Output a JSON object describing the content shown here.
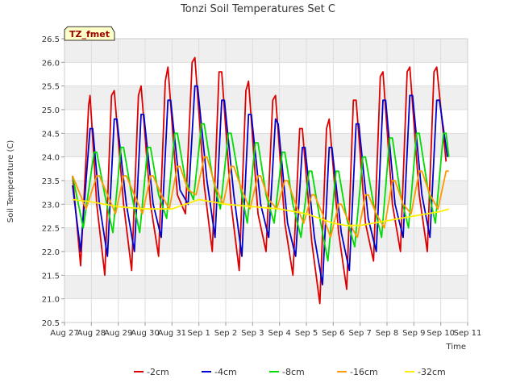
{
  "chart_data": {
    "type": "line",
    "title": "Tonzi Soil Temperatures Set C",
    "xlabel": "Time",
    "ylabel": "Soil Temperature (C)",
    "badge": "TZ_fmet",
    "ylim": [
      20.5,
      26.5
    ],
    "xlim": [
      0,
      15
    ],
    "grid": true,
    "legend": "bottom",
    "x_ticks": [
      "Aug 27",
      "Aug 28",
      "Aug 29",
      "Aug 30",
      "Aug 31",
      "Sep 1",
      "Sep 2",
      "Sep 3",
      "Sep 4",
      "Sep 5",
      "Sep 6",
      "Sep 7",
      "Sep 8",
      "Sep 9",
      "Sep 10",
      "Sep 11"
    ],
    "y_ticks": [
      20.5,
      21.0,
      21.5,
      22.0,
      22.5,
      23.0,
      23.5,
      24.0,
      24.5,
      25.0,
      25.5,
      26.0,
      26.5
    ],
    "x_unit": "days since Aug 27",
    "series": [
      {
        "name": "-2cm",
        "color": "#dd0000",
        "x": [
          0.3,
          0.6,
          0.9,
          0.95,
          1.2,
          1.5,
          1.75,
          1.85,
          2.2,
          2.5,
          2.75,
          2.85,
          3.2,
          3.5,
          3.75,
          3.85,
          4.2,
          4.5,
          4.75,
          4.85,
          5.2,
          5.5,
          5.75,
          5.85,
          6.2,
          6.5,
          6.75,
          6.85,
          7.2,
          7.5,
          7.75,
          7.85,
          8.2,
          8.5,
          8.75,
          8.85,
          9.2,
          9.5,
          9.75,
          9.85,
          10.2,
          10.5,
          10.75,
          10.85,
          11.2,
          11.5,
          11.75,
          11.85,
          12.2,
          12.5,
          12.75,
          12.85,
          13.2,
          13.5,
          13.75,
          13.85,
          14.2
        ],
        "y": [
          23.6,
          21.7,
          25.1,
          25.3,
          23.0,
          21.5,
          25.3,
          25.4,
          23.0,
          21.6,
          25.3,
          25.5,
          23.0,
          21.9,
          25.6,
          25.9,
          23.2,
          22.8,
          26.0,
          26.1,
          23.4,
          22.0,
          25.8,
          25.8,
          23.0,
          21.6,
          25.4,
          25.6,
          22.8,
          22.0,
          25.2,
          25.3,
          22.6,
          21.5,
          24.6,
          24.6,
          22.2,
          20.9,
          24.6,
          24.8,
          22.4,
          21.2,
          25.2,
          25.2,
          22.6,
          21.8,
          25.7,
          25.8,
          23.0,
          22.0,
          25.8,
          25.9,
          23.2,
          22.0,
          25.8,
          25.9,
          23.9
        ]
      },
      {
        "name": "-4cm",
        "color": "#0000cc",
        "x": [
          0.3,
          0.6,
          0.95,
          1.05,
          1.3,
          1.6,
          1.85,
          1.95,
          2.3,
          2.6,
          2.85,
          2.95,
          3.3,
          3.6,
          3.85,
          3.95,
          4.3,
          4.6,
          4.85,
          4.95,
          5.3,
          5.6,
          5.85,
          5.95,
          6.3,
          6.6,
          6.85,
          6.95,
          7.3,
          7.6,
          7.85,
          7.95,
          8.3,
          8.6,
          8.85,
          8.95,
          9.3,
          9.6,
          9.85,
          9.95,
          10.3,
          10.6,
          10.85,
          10.95,
          11.3,
          11.6,
          11.85,
          11.95,
          12.3,
          12.6,
          12.85,
          12.95,
          13.3,
          13.6,
          13.85,
          13.95,
          14.25
        ],
        "y": [
          23.4,
          22.0,
          24.6,
          24.6,
          23.0,
          21.9,
          24.8,
          24.8,
          23.0,
          22.0,
          24.9,
          24.9,
          23.0,
          22.3,
          25.2,
          25.2,
          23.3,
          23.0,
          25.5,
          25.5,
          23.5,
          22.3,
          25.2,
          25.2,
          23.2,
          21.9,
          24.9,
          24.9,
          23.0,
          22.3,
          24.8,
          24.7,
          22.6,
          21.9,
          24.2,
          24.2,
          22.3,
          21.3,
          24.2,
          24.2,
          22.4,
          21.6,
          24.7,
          24.7,
          22.7,
          22.0,
          25.2,
          25.2,
          23.0,
          22.3,
          25.3,
          25.3,
          23.2,
          22.3,
          25.2,
          25.2,
          24.0
        ]
      },
      {
        "name": "-8cm",
        "color": "#00dd00",
        "x": [
          0.3,
          0.7,
          1.1,
          1.2,
          1.5,
          1.8,
          2.1,
          2.2,
          2.5,
          2.8,
          3.1,
          3.2,
          3.5,
          3.8,
          4.1,
          4.2,
          4.5,
          4.8,
          5.1,
          5.2,
          5.5,
          5.8,
          6.1,
          6.2,
          6.5,
          6.8,
          7.1,
          7.2,
          7.5,
          7.8,
          8.1,
          8.2,
          8.5,
          8.8,
          9.1,
          9.2,
          9.5,
          9.8,
          10.1,
          10.2,
          10.5,
          10.8,
          11.1,
          11.2,
          11.5,
          11.8,
          12.1,
          12.2,
          12.5,
          12.8,
          13.1,
          13.2,
          13.5,
          13.8,
          14.1,
          14.2,
          14.3
        ],
        "y": [
          23.6,
          22.5,
          24.1,
          24.1,
          23.2,
          22.4,
          24.2,
          24.2,
          23.2,
          22.4,
          24.2,
          24.2,
          23.2,
          22.7,
          24.5,
          24.5,
          23.5,
          23.1,
          24.7,
          24.7,
          23.6,
          22.9,
          24.5,
          24.5,
          23.5,
          22.6,
          24.3,
          24.3,
          23.2,
          22.6,
          24.1,
          24.1,
          23.0,
          22.3,
          23.7,
          23.7,
          22.7,
          21.8,
          23.7,
          23.7,
          22.7,
          22.1,
          24.0,
          24.0,
          23.0,
          22.3,
          24.4,
          24.4,
          23.2,
          22.5,
          24.5,
          24.5,
          23.4,
          22.6,
          24.5,
          24.5,
          24.0
        ]
      },
      {
        "name": "-16cm",
        "color": "#ff9900",
        "x": [
          0.3,
          0.8,
          1.2,
          1.3,
          1.6,
          1.9,
          2.2,
          2.3,
          2.6,
          2.9,
          3.2,
          3.3,
          3.6,
          3.9,
          4.2,
          4.3,
          4.6,
          4.9,
          5.2,
          5.3,
          5.6,
          5.9,
          6.2,
          6.3,
          6.6,
          6.9,
          7.2,
          7.3,
          7.6,
          7.9,
          8.2,
          8.3,
          8.6,
          8.9,
          9.2,
          9.3,
          9.6,
          9.9,
          10.2,
          10.3,
          10.6,
          10.9,
          11.2,
          11.3,
          11.6,
          11.9,
          12.2,
          12.3,
          12.6,
          12.9,
          13.2,
          13.3,
          13.6,
          13.9,
          14.2,
          14.3
        ],
        "y": [
          23.6,
          22.9,
          23.6,
          23.6,
          23.2,
          22.8,
          23.6,
          23.6,
          23.2,
          22.8,
          23.6,
          23.6,
          23.2,
          22.9,
          23.8,
          23.8,
          23.3,
          23.2,
          24.0,
          24.0,
          23.4,
          23.0,
          23.8,
          23.8,
          23.3,
          22.9,
          23.6,
          23.6,
          23.1,
          22.9,
          23.5,
          23.5,
          23.0,
          22.6,
          23.2,
          23.2,
          22.8,
          22.3,
          23.0,
          23.0,
          22.6,
          22.3,
          23.2,
          23.2,
          22.8,
          22.5,
          23.5,
          23.5,
          23.0,
          22.8,
          23.7,
          23.7,
          23.2,
          22.9,
          23.7,
          23.7
        ]
      },
      {
        "name": "-32cm",
        "color": "#ffee00",
        "x": [
          0.3,
          1.0,
          2.0,
          3.0,
          4.0,
          5.0,
          6.0,
          7.0,
          8.0,
          9.0,
          10.0,
          10.5,
          11.0,
          11.5,
          12.0,
          12.5,
          13.0,
          13.5,
          14.0,
          14.3
        ],
        "y": [
          23.1,
          23.05,
          22.95,
          22.9,
          22.9,
          23.1,
          23.0,
          22.95,
          22.9,
          22.8,
          22.6,
          22.55,
          22.55,
          22.6,
          22.65,
          22.7,
          22.75,
          22.8,
          22.85,
          22.9
        ]
      }
    ]
  }
}
